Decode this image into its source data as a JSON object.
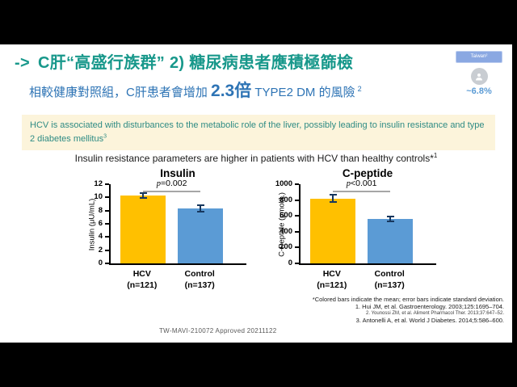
{
  "slide": {
    "title": {
      "arrow": "->",
      "text": "C肝“高盛行族群” 2) 糖尿病患者應積極篩檢"
    },
    "subtitle": {
      "prefix": "相較健康對照組，C肝患者會增加 ",
      "highlight": "2.3倍",
      "suffix": " TYPE2 DM 的風險",
      "superscript": "2"
    },
    "stat_badge": {
      "pill_label": "Taiwan²",
      "value": "~6.8%"
    },
    "note_box": {
      "text": "HCV is associated with disturbances to the metabolic role of the liver, possibly leading to insulin resistance and type 2 diabetes mellitus",
      "superscript": "3"
    },
    "chart_headline": {
      "text": "Insulin resistance parameters are higher in patients with HCV than healthy controls*",
      "superscript": "1"
    },
    "footnotes": [
      "*Colored bars indicate the mean; error bars indicate standard deviation.",
      "1. Hui JM, et al. Gastroenterology. 2003;125:1695–704.",
      "2. Younossi ZM, et al. Aliment Pharmacol Ther. 2013;37:647–52.",
      "3. Antonelli A, et al. World J Diabetes. 2014;5:586–600."
    ],
    "approval_code": "TW-MAVI-210072  Approved 20211122"
  },
  "chart_data": [
    {
      "type": "bar",
      "title": "Insulin",
      "ylabel": "Insulin (μU/mL)",
      "categories": [
        "HCV",
        "Control"
      ],
      "category_ns": [
        "(n=121)",
        "(n=137)"
      ],
      "values": [
        10.3,
        8.3
      ],
      "errors": [
        0.35,
        0.5
      ],
      "p_symbol": "p",
      "p_rest": "=0.002",
      "ylim": [
        0,
        12
      ],
      "yticks": [
        0,
        2,
        4,
        6,
        8,
        10,
        12
      ],
      "bar_colors": [
        "#FFC000",
        "#5B9BD5"
      ],
      "error_color": "#17375E",
      "legend_position": "none",
      "grid": false
    },
    {
      "type": "bar",
      "title": "C-peptide",
      "ylabel": "C-Peptide (pmol/L)",
      "categories": [
        "HCV",
        "Control"
      ],
      "category_ns": [
        "(n=121)",
        "(n=137)"
      ],
      "values": [
        820,
        560
      ],
      "errors": [
        45,
        30
      ],
      "p_symbol": "p",
      "p_rest": "<0.001",
      "ylim": [
        0,
        1000
      ],
      "yticks": [
        0,
        200,
        400,
        600,
        800,
        1000
      ],
      "bar_colors": [
        "#FFC000",
        "#5B9BD5"
      ],
      "error_color": "#17375E",
      "legend_position": "none",
      "grid": false
    }
  ]
}
